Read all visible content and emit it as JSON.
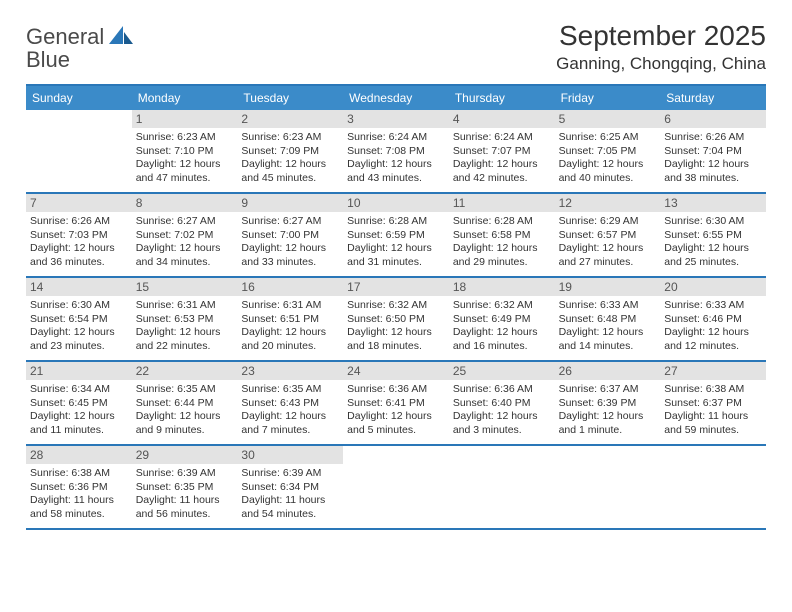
{
  "brand": {
    "word1": "General",
    "word2": "Blue"
  },
  "title": "September 2025",
  "location": "Ganning, Chongqing, China",
  "colors": {
    "accent": "#2a77b8",
    "header_bg": "#3b8bc9",
    "date_bg": "#e3e3e3",
    "text": "#333333"
  },
  "typography": {
    "title_fontsize": 28,
    "location_fontsize": 17,
    "dayheader_fontsize": 12,
    "cell_fontsize": 10.5
  },
  "calendar": {
    "day_names": [
      "Sunday",
      "Monday",
      "Tuesday",
      "Wednesday",
      "Thursday",
      "Friday",
      "Saturday"
    ],
    "weeks": [
      [
        null,
        {
          "date": "1",
          "sunrise": "Sunrise: 6:23 AM",
          "sunset": "Sunset: 7:10 PM",
          "dl1": "Daylight: 12 hours",
          "dl2": "and 47 minutes."
        },
        {
          "date": "2",
          "sunrise": "Sunrise: 6:23 AM",
          "sunset": "Sunset: 7:09 PM",
          "dl1": "Daylight: 12 hours",
          "dl2": "and 45 minutes."
        },
        {
          "date": "3",
          "sunrise": "Sunrise: 6:24 AM",
          "sunset": "Sunset: 7:08 PM",
          "dl1": "Daylight: 12 hours",
          "dl2": "and 43 minutes."
        },
        {
          "date": "4",
          "sunrise": "Sunrise: 6:24 AM",
          "sunset": "Sunset: 7:07 PM",
          "dl1": "Daylight: 12 hours",
          "dl2": "and 42 minutes."
        },
        {
          "date": "5",
          "sunrise": "Sunrise: 6:25 AM",
          "sunset": "Sunset: 7:05 PM",
          "dl1": "Daylight: 12 hours",
          "dl2": "and 40 minutes."
        },
        {
          "date": "6",
          "sunrise": "Sunrise: 6:26 AM",
          "sunset": "Sunset: 7:04 PM",
          "dl1": "Daylight: 12 hours",
          "dl2": "and 38 minutes."
        }
      ],
      [
        {
          "date": "7",
          "sunrise": "Sunrise: 6:26 AM",
          "sunset": "Sunset: 7:03 PM",
          "dl1": "Daylight: 12 hours",
          "dl2": "and 36 minutes."
        },
        {
          "date": "8",
          "sunrise": "Sunrise: 6:27 AM",
          "sunset": "Sunset: 7:02 PM",
          "dl1": "Daylight: 12 hours",
          "dl2": "and 34 minutes."
        },
        {
          "date": "9",
          "sunrise": "Sunrise: 6:27 AM",
          "sunset": "Sunset: 7:00 PM",
          "dl1": "Daylight: 12 hours",
          "dl2": "and 33 minutes."
        },
        {
          "date": "10",
          "sunrise": "Sunrise: 6:28 AM",
          "sunset": "Sunset: 6:59 PM",
          "dl1": "Daylight: 12 hours",
          "dl2": "and 31 minutes."
        },
        {
          "date": "11",
          "sunrise": "Sunrise: 6:28 AM",
          "sunset": "Sunset: 6:58 PM",
          "dl1": "Daylight: 12 hours",
          "dl2": "and 29 minutes."
        },
        {
          "date": "12",
          "sunrise": "Sunrise: 6:29 AM",
          "sunset": "Sunset: 6:57 PM",
          "dl1": "Daylight: 12 hours",
          "dl2": "and 27 minutes."
        },
        {
          "date": "13",
          "sunrise": "Sunrise: 6:30 AM",
          "sunset": "Sunset: 6:55 PM",
          "dl1": "Daylight: 12 hours",
          "dl2": "and 25 minutes."
        }
      ],
      [
        {
          "date": "14",
          "sunrise": "Sunrise: 6:30 AM",
          "sunset": "Sunset: 6:54 PM",
          "dl1": "Daylight: 12 hours",
          "dl2": "and 23 minutes."
        },
        {
          "date": "15",
          "sunrise": "Sunrise: 6:31 AM",
          "sunset": "Sunset: 6:53 PM",
          "dl1": "Daylight: 12 hours",
          "dl2": "and 22 minutes."
        },
        {
          "date": "16",
          "sunrise": "Sunrise: 6:31 AM",
          "sunset": "Sunset: 6:51 PM",
          "dl1": "Daylight: 12 hours",
          "dl2": "and 20 minutes."
        },
        {
          "date": "17",
          "sunrise": "Sunrise: 6:32 AM",
          "sunset": "Sunset: 6:50 PM",
          "dl1": "Daylight: 12 hours",
          "dl2": "and 18 minutes."
        },
        {
          "date": "18",
          "sunrise": "Sunrise: 6:32 AM",
          "sunset": "Sunset: 6:49 PM",
          "dl1": "Daylight: 12 hours",
          "dl2": "and 16 minutes."
        },
        {
          "date": "19",
          "sunrise": "Sunrise: 6:33 AM",
          "sunset": "Sunset: 6:48 PM",
          "dl1": "Daylight: 12 hours",
          "dl2": "and 14 minutes."
        },
        {
          "date": "20",
          "sunrise": "Sunrise: 6:33 AM",
          "sunset": "Sunset: 6:46 PM",
          "dl1": "Daylight: 12 hours",
          "dl2": "and 12 minutes."
        }
      ],
      [
        {
          "date": "21",
          "sunrise": "Sunrise: 6:34 AM",
          "sunset": "Sunset: 6:45 PM",
          "dl1": "Daylight: 12 hours",
          "dl2": "and 11 minutes."
        },
        {
          "date": "22",
          "sunrise": "Sunrise: 6:35 AM",
          "sunset": "Sunset: 6:44 PM",
          "dl1": "Daylight: 12 hours",
          "dl2": "and 9 minutes."
        },
        {
          "date": "23",
          "sunrise": "Sunrise: 6:35 AM",
          "sunset": "Sunset: 6:43 PM",
          "dl1": "Daylight: 12 hours",
          "dl2": "and 7 minutes."
        },
        {
          "date": "24",
          "sunrise": "Sunrise: 6:36 AM",
          "sunset": "Sunset: 6:41 PM",
          "dl1": "Daylight: 12 hours",
          "dl2": "and 5 minutes."
        },
        {
          "date": "25",
          "sunrise": "Sunrise: 6:36 AM",
          "sunset": "Sunset: 6:40 PM",
          "dl1": "Daylight: 12 hours",
          "dl2": "and 3 minutes."
        },
        {
          "date": "26",
          "sunrise": "Sunrise: 6:37 AM",
          "sunset": "Sunset: 6:39 PM",
          "dl1": "Daylight: 12 hours",
          "dl2": "and 1 minute."
        },
        {
          "date": "27",
          "sunrise": "Sunrise: 6:38 AM",
          "sunset": "Sunset: 6:37 PM",
          "dl1": "Daylight: 11 hours",
          "dl2": "and 59 minutes."
        }
      ],
      [
        {
          "date": "28",
          "sunrise": "Sunrise: 6:38 AM",
          "sunset": "Sunset: 6:36 PM",
          "dl1": "Daylight: 11 hours",
          "dl2": "and 58 minutes."
        },
        {
          "date": "29",
          "sunrise": "Sunrise: 6:39 AM",
          "sunset": "Sunset: 6:35 PM",
          "dl1": "Daylight: 11 hours",
          "dl2": "and 56 minutes."
        },
        {
          "date": "30",
          "sunrise": "Sunrise: 6:39 AM",
          "sunset": "Sunset: 6:34 PM",
          "dl1": "Daylight: 11 hours",
          "dl2": "and 54 minutes."
        },
        null,
        null,
        null,
        null
      ]
    ]
  }
}
